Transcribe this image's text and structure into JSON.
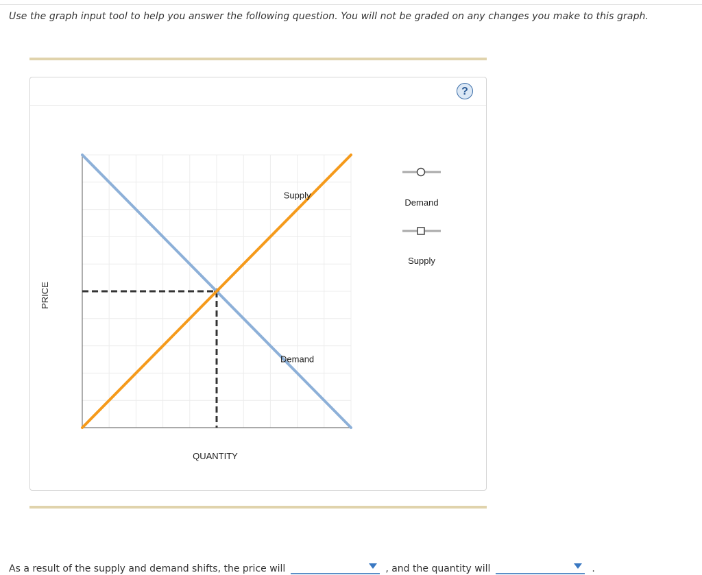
{
  "instructions": "Use the graph input tool to help you answer the following question. You will not be graded on any changes you make to this graph.",
  "graph": {
    "help_icon": "?",
    "axes": {
      "x_title": "QUANTITY",
      "y_title": "PRICE"
    },
    "grid": {
      "on": true,
      "columns": 10,
      "rows": 10
    },
    "curves": {
      "demand": {
        "label": "Demand",
        "color": "#8db0d8",
        "from": [
          0,
          10
        ],
        "to": [
          10,
          0
        ],
        "label_at": [
          8,
          2.5
        ]
      },
      "supply": {
        "label": "Supply",
        "color": "#f59a1b",
        "from": [
          0,
          0
        ],
        "to": [
          10,
          10
        ],
        "label_at": [
          8,
          8.5
        ]
      }
    },
    "equilibrium": {
      "x": 5,
      "y": 5,
      "line_color": "#333333"
    },
    "legend": [
      {
        "label": "Demand",
        "marker": "circle-handle-icon",
        "color": "#aaaaaa"
      },
      {
        "label": "Supply",
        "marker": "square-handle-icon",
        "color": "#aaaaaa"
      }
    ]
  },
  "question": {
    "text_before": "As a result of the supply and demand shifts, the price will",
    "text_middle": ", and the quantity will",
    "text_after": ".",
    "dropdown_icon": "caret-down-icon"
  }
}
